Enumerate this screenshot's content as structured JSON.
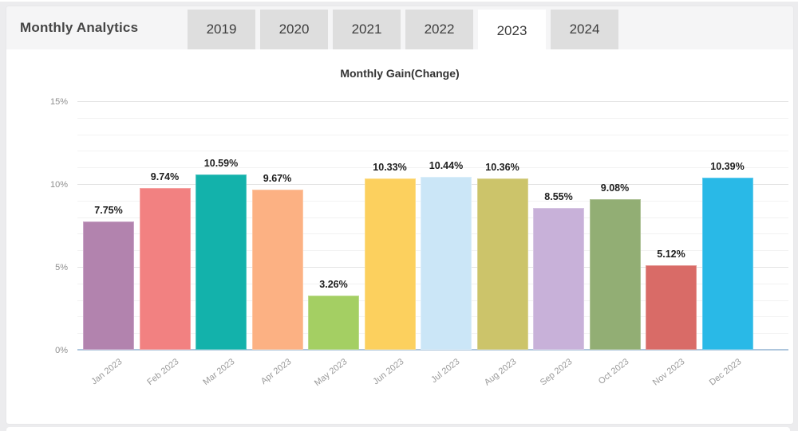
{
  "page": {
    "background": "#ececee",
    "card_background": "#ffffff"
  },
  "header": {
    "title": "Monthly Analytics",
    "tabs": [
      {
        "label": "2019",
        "active": false
      },
      {
        "label": "2020",
        "active": false
      },
      {
        "label": "2021",
        "active": false
      },
      {
        "label": "2022",
        "active": false
      },
      {
        "label": "2023",
        "active": true
      },
      {
        "label": "2024",
        "active": false
      }
    ]
  },
  "chart_data": {
    "type": "bar",
    "title": "Monthly Gain(Change)",
    "categories": [
      "Jan 2023",
      "Feb 2023",
      "Mar 2023",
      "Apr 2023",
      "May 2023",
      "Jun 2023",
      "Jul 2023",
      "Aug 2023",
      "Sep 2023",
      "Oct 2023",
      "Nov 2023",
      "Dec 2023"
    ],
    "values": [
      7.75,
      9.74,
      10.59,
      9.67,
      3.26,
      10.33,
      10.44,
      10.36,
      8.55,
      9.08,
      5.12,
      10.39
    ],
    "value_labels": [
      "7.75%",
      "9.74%",
      "10.59%",
      "9.67%",
      "3.26%",
      "10.33%",
      "10.44%",
      "10.36%",
      "8.55%",
      "9.08%",
      "5.12%",
      "10.39%"
    ],
    "bar_fills": [
      "#b283ae",
      "#f28181",
      "#13b2ab",
      "#fcb183",
      "#a4cf63",
      "#fcd05e",
      "#cbe6f7",
      "#ccc46a",
      "#c8b1d9",
      "#92ae74",
      "#d96b67",
      "#29b9e7"
    ],
    "bar_strokes": [
      "#c9a5c7",
      "#f5a3a3",
      "#53c6c1",
      "#fdc7a4",
      "#bcdb8c",
      "#fddd87",
      "#dbeefa",
      "#d9d392",
      "#d7c7e3",
      "#aec297",
      "#e39490",
      "#63cbed"
    ],
    "xlabel": "",
    "ylabel": "",
    "ylim": [
      0,
      15
    ],
    "y_major_ticks": [
      0,
      5,
      10,
      15
    ],
    "y_major_tick_labels": [
      "0%",
      "5%",
      "10%",
      "15%"
    ],
    "y_minor_step": 1,
    "grid": true,
    "legend": false,
    "zero_line_color": "#aec6dd",
    "grid_major_color": "#e3e3e3",
    "grid_minor_color": "#f2f2f2"
  }
}
